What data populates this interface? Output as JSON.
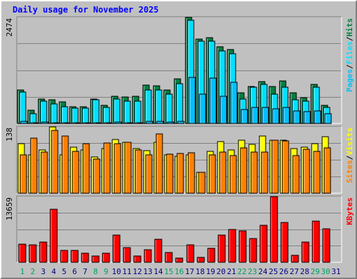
{
  "title": "Daily usage for November 2025",
  "colors": {
    "hits": "#008040",
    "files": "#00e0ff",
    "pages": "#00c0ff",
    "visits": "#ffff00",
    "sites": "#ff8000",
    "kbytes": "#ff0000",
    "weekend_day_label": "#00a060",
    "weekday_day_label": "#000080"
  },
  "chart_data": [
    {
      "type": "bar",
      "panel": "hits-files-pages",
      "ymax_label": "2474",
      "right_labels": [
        "Pages",
        "/",
        "Files",
        "/",
        "Hits"
      ],
      "categories": [
        "1",
        "2",
        "3",
        "4",
        "5",
        "6",
        "7",
        "8",
        "9",
        "10",
        "11",
        "12",
        "13",
        "14",
        "15",
        "16",
        "17",
        "18",
        "19",
        "20",
        "21",
        "22",
        "23",
        "24",
        "25",
        "26",
        "27",
        "28",
        "29",
        "30",
        "31"
      ],
      "ylim": [
        0,
        2474
      ],
      "series": [
        {
          "name": "Hits",
          "values": [
            790,
            320,
            590,
            560,
            520,
            400,
            410,
            590,
            440,
            640,
            630,
            640,
            900,
            890,
            790,
            1050,
            2474,
            1980,
            2000,
            1790,
            1730,
            720,
            880,
            980,
            880,
            1010,
            720,
            620,
            920,
            440,
            0
          ]
        },
        {
          "name": "Files",
          "values": [
            740,
            240,
            540,
            470,
            400,
            370,
            370,
            560,
            380,
            580,
            530,
            540,
            790,
            790,
            690,
            940,
            2410,
            1930,
            1930,
            1690,
            1640,
            580,
            850,
            920,
            690,
            860,
            560,
            530,
            860,
            380,
            0
          ]
        },
        {
          "name": "Pages",
          "values": [
            60,
            30,
            50,
            40,
            40,
            30,
            30,
            40,
            30,
            50,
            40,
            40,
            60,
            60,
            50,
            70,
            1080,
            690,
            1070,
            650,
            970,
            340,
            380,
            390,
            360,
            390,
            310,
            290,
            310,
            240,
            0
          ]
        }
      ]
    },
    {
      "type": "bar",
      "panel": "visits-sites",
      "ymax_label": "138",
      "right_labels": [
        "Sites",
        "/",
        "Visits"
      ],
      "categories": [
        "1",
        "2",
        "3",
        "4",
        "5",
        "6",
        "7",
        "8",
        "9",
        "10",
        "11",
        "12",
        "13",
        "14",
        "15",
        "16",
        "17",
        "18",
        "19",
        "20",
        "21",
        "22",
        "23",
        "24",
        "25",
        "26",
        "27",
        "28",
        "29",
        "30",
        "31"
      ],
      "ylim": [
        0,
        138
      ],
      "series": [
        {
          "name": "Visits",
          "values": [
            103,
            80,
            91,
            138,
            81,
            96,
            91,
            76,
            93,
            112,
            106,
            94,
            89,
            106,
            80,
            78,
            81,
            45,
            88,
            108,
            91,
            110,
            102,
            120,
            110,
            110,
            94,
            96,
            103,
            118,
            0
          ]
        },
        {
          "name": "Sites",
          "values": [
            80,
            115,
            86,
            131,
            120,
            88,
            104,
            72,
            105,
            104,
            106,
            90,
            81,
            124,
            82,
            83,
            85,
            44,
            81,
            86,
            79,
            95,
            86,
            86,
            110,
            109,
            79,
            92,
            88,
            95,
            0
          ]
        }
      ]
    },
    {
      "type": "bar",
      "panel": "kbytes",
      "ymax_label": "13659",
      "right_labels": [
        "KBytes"
      ],
      "categories": [
        "1",
        "2",
        "3",
        "4",
        "5",
        "6",
        "7",
        "8",
        "9",
        "10",
        "11",
        "12",
        "13",
        "14",
        "15",
        "16",
        "17",
        "18",
        "19",
        "20",
        "21",
        "22",
        "23",
        "24",
        "25",
        "26",
        "27",
        "28",
        "29",
        "30",
        "31"
      ],
      "ylim": [
        0,
        13659
      ],
      "series": [
        {
          "name": "KBytes",
          "values": [
            3900,
            3700,
            4300,
            11100,
            2600,
            2600,
            2000,
            1500,
            2000,
            5700,
            3100,
            1500,
            2700,
            4900,
            2100,
            1000,
            3700,
            1200,
            3000,
            5700,
            6900,
            6600,
            5000,
            7700,
            13659,
            8400,
            1600,
            4300,
            8600,
            7000,
            0
          ]
        }
      ]
    }
  ],
  "day_labels": [
    {
      "text": "1",
      "weekend": true
    },
    {
      "text": "2",
      "weekend": true
    },
    {
      "text": "3",
      "weekend": false
    },
    {
      "text": "4",
      "weekend": false
    },
    {
      "text": "5",
      "weekend": false
    },
    {
      "text": "6",
      "weekend": false
    },
    {
      "text": "7",
      "weekend": false
    },
    {
      "text": "8",
      "weekend": true
    },
    {
      "text": "9",
      "weekend": true
    },
    {
      "text": "10",
      "weekend": false
    },
    {
      "text": "11",
      "weekend": false
    },
    {
      "text": "12",
      "weekend": false
    },
    {
      "text": "13",
      "weekend": false
    },
    {
      "text": "14",
      "weekend": false
    },
    {
      "text": "15",
      "weekend": true
    },
    {
      "text": "16",
      "weekend": true
    },
    {
      "text": "17",
      "weekend": false
    },
    {
      "text": "18",
      "weekend": false
    },
    {
      "text": "19",
      "weekend": false
    },
    {
      "text": "20",
      "weekend": false
    },
    {
      "text": "21",
      "weekend": false
    },
    {
      "text": "22",
      "weekend": true
    },
    {
      "text": "23",
      "weekend": true
    },
    {
      "text": "24",
      "weekend": false
    },
    {
      "text": "25",
      "weekend": false
    },
    {
      "text": "26",
      "weekend": false
    },
    {
      "text": "27",
      "weekend": false
    },
    {
      "text": "28",
      "weekend": false
    },
    {
      "text": "29",
      "weekend": true
    },
    {
      "text": "30",
      "weekend": true
    },
    {
      "text": "31",
      "weekend": false
    }
  ]
}
